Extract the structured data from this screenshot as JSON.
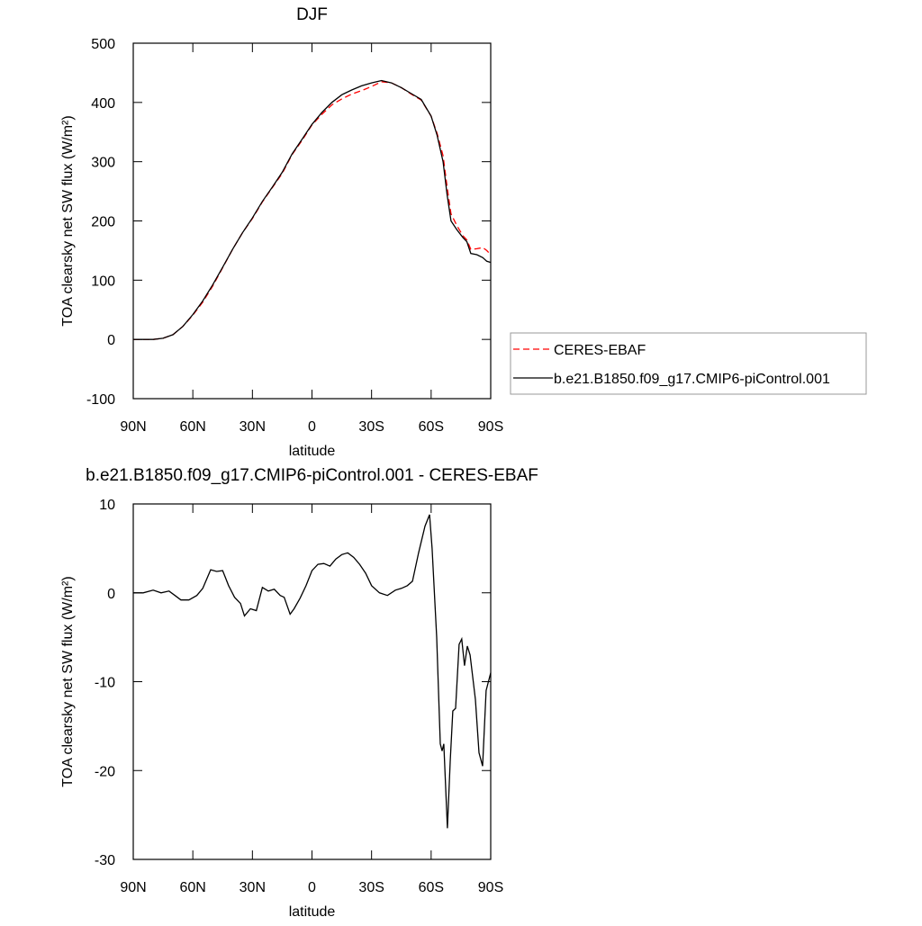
{
  "chart_data": [
    {
      "type": "line",
      "title": "DJF",
      "x_label": "latitude",
      "y_label": "TOA clearsky net SW flux (W/m²)",
      "x": [
        90,
        85,
        80,
        75,
        70,
        65,
        60,
        55,
        50,
        45,
        40,
        35,
        30,
        25,
        20,
        15,
        10,
        5,
        0,
        -5,
        -10,
        -15,
        -20,
        -25,
        -30,
        -35,
        -40,
        -45,
        -50,
        -55,
        -60,
        -63,
        -66,
        -68,
        -70,
        -73,
        -76,
        -78,
        -80,
        -83,
        -86,
        -88,
        -90
      ],
      "series": [
        {
          "name": "CERES-EBAF",
          "color": "#ff0000",
          "dash": true,
          "values": [
            0,
            0,
            0,
            2,
            8,
            22,
            41,
            63,
            90,
            121,
            152,
            180,
            204,
            232,
            256,
            280,
            312,
            336,
            362,
            380,
            396,
            406,
            414,
            420,
            427,
            435,
            433,
            425,
            414,
            404,
            377,
            348,
            310,
            258,
            212,
            192,
            175,
            168,
            152,
            153,
            155,
            150,
            143
          ]
        },
        {
          "name": "b.e21.B1850.f09_g17.CMIP6-piControl.001",
          "color": "#000000",
          "dash": false,
          "values": [
            0,
            0,
            0,
            2,
            8,
            22,
            42,
            65,
            92,
            122,
            152,
            180,
            205,
            233,
            257,
            282,
            313,
            338,
            363,
            383,
            400,
            413,
            421,
            428,
            433,
            437,
            433,
            425,
            415,
            405,
            377,
            345,
            300,
            245,
            200,
            185,
            172,
            165,
            145,
            143,
            138,
            132,
            130
          ]
        }
      ],
      "xlim": [
        90,
        -90
      ],
      "xticks": [
        {
          "value": 90,
          "label": "90N"
        },
        {
          "value": 60,
          "label": "60N"
        },
        {
          "value": 30,
          "label": "30N"
        },
        0,
        {
          "value": -30,
          "label": "30S"
        },
        {
          "value": -60,
          "label": "60S"
        },
        {
          "value": -90,
          "label": "90S"
        }
      ],
      "ylim": [
        -100,
        500
      ],
      "yticks": [
        -100,
        0,
        100,
        200,
        300,
        400,
        500
      ],
      "legend": "right"
    },
    {
      "type": "line",
      "title": "b.e21.B1850.f09_g17.CMIP6-piControl.001 - CERES-EBAF",
      "x_label": "latitude",
      "y_label": "TOA clearsky net SW flux (W/m²)",
      "x": [
        90,
        85,
        80,
        76,
        72,
        69,
        66,
        62,
        58,
        55,
        51,
        48,
        45,
        42,
        39,
        36,
        34,
        31,
        28,
        25,
        22,
        19,
        16,
        14,
        11,
        9,
        6,
        3,
        0,
        -3,
        -6,
        -9,
        -12,
        -15,
        -18,
        -21,
        -24,
        -27,
        -30,
        -34,
        -38,
        -42,
        -45,
        -48,
        -50.6,
        -53.7,
        -56.9,
        -59.2,
        -60.5,
        -62.8,
        -64.6,
        -65.5,
        -66.4,
        -68.2,
        -69.6,
        -70.9,
        -72.3,
        -74.1,
        -75.4,
        -76.8,
        -78.2,
        -79.6,
        -82.3,
        -84.1,
        -85.9,
        -87.7,
        -90
      ],
      "values": [
        0,
        0,
        0.3,
        0,
        0.2,
        -0.3,
        -0.8,
        -0.8,
        -0.3,
        0.5,
        2.6,
        2.4,
        2.5,
        0.8,
        -0.5,
        -1.2,
        -2.6,
        -1.8,
        -2.0,
        0.6,
        0.2,
        0.4,
        -0.3,
        -0.5,
        -2.4,
        -1.8,
        -0.6,
        0.8,
        2.5,
        3.2,
        3.3,
        3.0,
        3.8,
        4.3,
        4.5,
        4.0,
        3.2,
        2.2,
        0.8,
        0.0,
        -0.3,
        0.3,
        0.5,
        0.8,
        1.3,
        4.5,
        7.5,
        8.8,
        5,
        -5,
        -17,
        -17.8,
        -17,
        -26.5,
        -19,
        -13.3,
        -13,
        -5.8,
        -5.2,
        -8.2,
        -6,
        -7,
        -12,
        -18,
        -19.5,
        -11,
        -9
      ],
      "color": "#000000",
      "xlim": [
        90,
        -90
      ],
      "xticks": [
        {
          "value": 90,
          "label": "90N"
        },
        {
          "value": 60,
          "label": "60N"
        },
        {
          "value": 30,
          "label": "30N"
        },
        0,
        {
          "value": -30,
          "label": "30S"
        },
        {
          "value": -60,
          "label": "60S"
        },
        {
          "value": -90,
          "label": "90S"
        }
      ],
      "ylim": [
        -30,
        10
      ],
      "yticks": [
        -30,
        -20,
        -10,
        0,
        10
      ]
    }
  ]
}
